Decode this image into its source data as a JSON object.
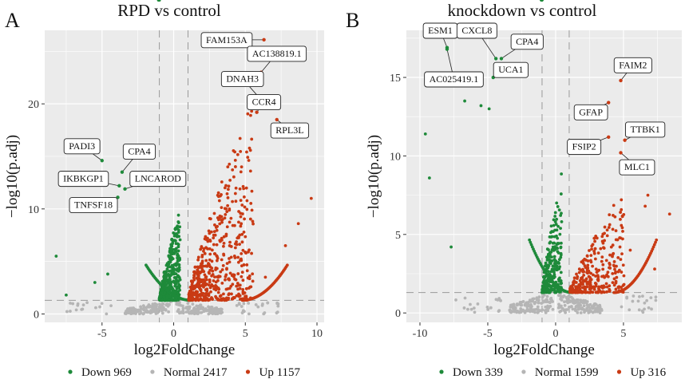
{
  "panels": [
    {
      "letter": "A",
      "chart_data": {
        "type": "scatter",
        "title": "RPD vs control",
        "xlabel": "log2FoldChange",
        "ylabel": "−log10(p.adj)",
        "xlim": [
          -9,
          10.5
        ],
        "ylim": [
          -0.8,
          27
        ],
        "xticks": [
          -5,
          0,
          5,
          10
        ],
        "yticks": [
          0,
          10,
          20
        ],
        "thresholds": {
          "fc": [
            -1,
            1
          ],
          "padj": 1.3
        },
        "grid": true,
        "legend": [
          {
            "label": "Down 969",
            "color": "#1e8a3a"
          },
          {
            "label": "Normal 2417",
            "color": "#b5b5b5"
          },
          {
            "label": "Up 1157",
            "color": "#c93a14"
          }
        ],
        "series_shapes": [
          {
            "group": "down",
            "side": -1,
            "maxY": 9,
            "clusterX": -3,
            "extraTail": [
              [
                -8.2,
                5.5
              ],
              [
                -7.5,
                1.8
              ],
              [
                -5.5,
                3
              ],
              [
                -4.6,
                3.8
              ]
            ]
          },
          {
            "group": "up",
            "side": 1,
            "maxY": 19,
            "clusterX": 3,
            "extraTail": [
              [
                8.7,
                8.6
              ],
              [
                9.6,
                11
              ],
              [
                7.8,
                6.5
              ],
              [
                6.4,
                3.5
              ]
            ]
          }
        ],
        "highlights": [
          {
            "gene": "FAM153A",
            "x": 6.3,
            "y": 26.1,
            "color": "#c93a14",
            "lx": 3.7,
            "ly": 26.1,
            "anchor": "end"
          },
          {
            "gene": "AC138819.1",
            "x": 6.1,
            "y": 23,
            "color": "#c93a14",
            "lx": 7.2,
            "ly": 24.8,
            "anchor": "mid"
          },
          {
            "gene": "DNAH3",
            "x": 5.9,
            "y": 20.7,
            "color": "#c93a14",
            "lx": 4.8,
            "ly": 22.4,
            "anchor": "end"
          },
          {
            "gene": "CCR4",
            "x": 5.8,
            "y": 19.2,
            "color": "#c93a14",
            "lx": 6.3,
            "ly": 20.2,
            "anchor": "mid"
          },
          {
            "gene": "RPL3L",
            "x": 7.2,
            "y": 18.5,
            "color": "#c93a14",
            "lx": 8.1,
            "ly": 17.5,
            "anchor": "mid"
          },
          {
            "gene": "PADI3",
            "x": -5.0,
            "y": 14.6,
            "color": "#1e8a3a",
            "lx": -6.4,
            "ly": 16,
            "anchor": "mid"
          },
          {
            "gene": "CPA4",
            "x": -3.6,
            "y": 13.5,
            "color": "#1e8a3a",
            "lx": -2.4,
            "ly": 15.5,
            "anchor": "mid"
          },
          {
            "gene": "IKBKGP1",
            "x": -3.8,
            "y": 12.2,
            "color": "#1e8a3a",
            "lx": -6.3,
            "ly": 12.9,
            "anchor": "mid"
          },
          {
            "gene": "LNCAROD",
            "x": -3.4,
            "y": 11.9,
            "color": "#1e8a3a",
            "lx": -1.1,
            "ly": 12.9,
            "anchor": "mid"
          },
          {
            "gene": "TNFSF18",
            "x": -3.9,
            "y": 11.1,
            "color": "#1e8a3a",
            "lx": -5.6,
            "ly": 10.4,
            "anchor": "mid"
          }
        ]
      }
    },
    {
      "letter": "B",
      "chart_data": {
        "type": "scatter",
        "title": "knockdown vs control",
        "xlabel": "log2FoldChange",
        "ylabel": "−log10(p.adj)",
        "xlim": [
          -11,
          9.3
        ],
        "ylim": [
          -0.6,
          18
        ],
        "xticks": [
          -10,
          -5,
          0,
          5
        ],
        "yticks": [
          0,
          5,
          10,
          15
        ],
        "thresholds": {
          "fc": [
            -1,
            1
          ],
          "padj": 1.3
        },
        "grid": true,
        "legend": [
          {
            "label": "Down 339",
            "color": "#1e8a3a"
          },
          {
            "label": "Normal 1599",
            "color": "#b5b5b5"
          },
          {
            "label": "Up 316",
            "color": "#c93a14"
          }
        ],
        "series_shapes": [
          {
            "group": "down",
            "side": -1,
            "maxY": 8,
            "clusterX": -3,
            "extraTail": [
              [
                -9.6,
                11.4
              ],
              [
                -9.3,
                8.6
              ],
              [
                -7.7,
                4.2
              ],
              [
                -5.5,
                13.2
              ],
              [
                -6.7,
                13.5
              ],
              [
                -4.9,
                13
              ]
            ]
          },
          {
            "group": "up",
            "side": 1,
            "maxY": 6.5,
            "clusterX": 2.5,
            "extraTail": [
              [
                8.4,
                6.3
              ],
              [
                6.8,
                7.5
              ],
              [
                6.6,
                6.8
              ],
              [
                7.3,
                2.8
              ],
              [
                5.5,
                4
              ]
            ]
          }
        ],
        "highlights": [
          {
            "gene": "ESM1",
            "x": -8.0,
            "y": 16.9,
            "color": "#1e8a3a",
            "lx": -8.5,
            "ly": 18.0,
            "anchor": "mid"
          },
          {
            "gene": "CXCL8",
            "x": -4.4,
            "y": 16.2,
            "color": "#1e8a3a",
            "lx": -5.8,
            "ly": 18.0,
            "anchor": "mid"
          },
          {
            "gene": "CPA4",
            "x": -4.0,
            "y": 16.2,
            "color": "#1e8a3a",
            "lx": -2.1,
            "ly": 17.3,
            "anchor": "mid"
          },
          {
            "gene": "AC025419.1",
            "x": -8.0,
            "y": 16.8,
            "color": "#1e8a3a",
            "lx": -7.5,
            "ly": 14.9,
            "anchor": "mid"
          },
          {
            "gene": "UCA1",
            "x": -4.6,
            "y": 15.0,
            "color": "#1e8a3a",
            "lx": -3.3,
            "ly": 15.5,
            "anchor": "mid"
          },
          {
            "gene": "FAIM2",
            "x": 4.8,
            "y": 14.8,
            "color": "#c93a14",
            "lx": 5.7,
            "ly": 15.8,
            "anchor": "mid"
          },
          {
            "gene": "GFAP",
            "x": 3.9,
            "y": 13.4,
            "color": "#c93a14",
            "lx": 2.6,
            "ly": 12.8,
            "anchor": "mid"
          },
          {
            "gene": "TTBK1",
            "x": 5.1,
            "y": 11.0,
            "color": "#c93a14",
            "lx": 6.6,
            "ly": 11.7,
            "anchor": "mid"
          },
          {
            "gene": "FSIP2",
            "x": 3.9,
            "y": 11.2,
            "color": "#c93a14",
            "lx": 2.1,
            "ly": 10.6,
            "anchor": "mid"
          },
          {
            "gene": "MLC1",
            "x": 4.8,
            "y": 10.2,
            "color": "#c93a14",
            "lx": 6.0,
            "ly": 9.3,
            "anchor": "mid"
          }
        ]
      }
    }
  ]
}
